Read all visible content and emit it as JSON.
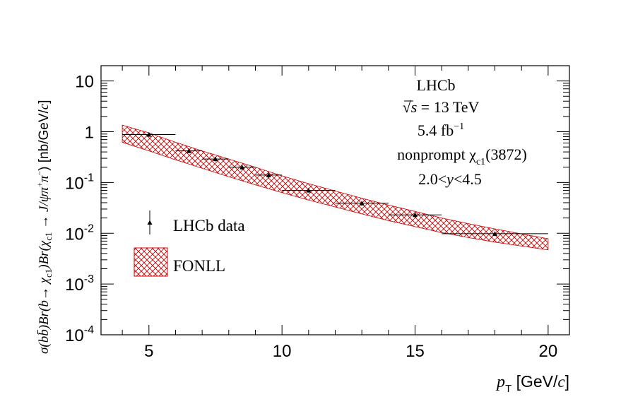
{
  "chart_data": {
    "type": "scatter",
    "title": "",
    "xlabel": "p_T [GeV/c]",
    "xlabel_parts": {
      "var": "p",
      "sub": "T",
      "unit_open": " [GeV/",
      "unit_c": "c",
      "unit_close": "]"
    },
    "ylabel": "σ(bb̄)Br(b→ χc1)Br(χc1 → J/ψπ+π−) [nb/GeV/c]",
    "ylabel_parts": {
      "sigma": "σ(",
      "bb": "bb̄",
      "br1": ")Br(b→ χ",
      "c1a": "c1",
      "br2": ")Br(χ",
      "c1b": "c1",
      "arrow": " → J/ψπ",
      "plus": "+",
      "pi": "π",
      "minus": "−",
      "close": ") [nb/GeV/",
      "c": "c",
      "end": "]"
    },
    "xlim": [
      3.2,
      20.8
    ],
    "ylim": [
      0.0001,
      20
    ],
    "yscale": "log",
    "xticks": [
      5,
      10,
      15,
      20
    ],
    "xtick_labels": [
      "5",
      "10",
      "15",
      "20"
    ],
    "yticks": [
      {
        "value": 10,
        "base": "10",
        "exp": ""
      },
      {
        "value": 1,
        "base": "1",
        "exp": ""
      },
      {
        "value": 0.1,
        "base": "10",
        "exp": "-1"
      },
      {
        "value": 0.01,
        "base": "10",
        "exp": "-2"
      },
      {
        "value": 0.001,
        "base": "10",
        "exp": "-3"
      },
      {
        "value": 0.0001,
        "base": "10",
        "exp": "-4"
      }
    ],
    "series": [
      {
        "name": "LHCb data",
        "marker": "triangle",
        "color": "#000000",
        "points": [
          {
            "x": 5.0,
            "xlo": 4.0,
            "xhi": 6.0,
            "y": 0.88,
            "ylo": 0.8,
            "yhi": 0.97
          },
          {
            "x": 6.5,
            "xlo": 6.0,
            "xhi": 7.0,
            "y": 0.42,
            "ylo": 0.38,
            "yhi": 0.47
          },
          {
            "x": 7.5,
            "xlo": 7.0,
            "xhi": 8.0,
            "y": 0.29,
            "ylo": 0.26,
            "yhi": 0.32
          },
          {
            "x": 8.5,
            "xlo": 8.0,
            "xhi": 9.0,
            "y": 0.2,
            "ylo": 0.18,
            "yhi": 0.22
          },
          {
            "x": 9.5,
            "xlo": 9.0,
            "xhi": 10.0,
            "y": 0.14,
            "ylo": 0.126,
            "yhi": 0.155
          },
          {
            "x": 11.0,
            "xlo": 10.0,
            "xhi": 12.0,
            "y": 0.07,
            "ylo": 0.063,
            "yhi": 0.078
          },
          {
            "x": 13.0,
            "xlo": 12.0,
            "xhi": 14.0,
            "y": 0.039,
            "ylo": 0.035,
            "yhi": 0.043
          },
          {
            "x": 15.0,
            "xlo": 14.0,
            "xhi": 16.0,
            "y": 0.023,
            "ylo": 0.0205,
            "yhi": 0.0255
          },
          {
            "x": 18.0,
            "xlo": 16.0,
            "xhi": 20.0,
            "y": 0.0098,
            "ylo": 0.0088,
            "yhi": 0.0108
          }
        ]
      },
      {
        "name": "FONLL",
        "style": "hatched band",
        "color": "#cc0000",
        "x": [
          4.0,
          5.0,
          6.0,
          7.0,
          8.0,
          9.0,
          10.0,
          11.0,
          12.0,
          13.0,
          14.0,
          15.0,
          16.0,
          17.0,
          18.0,
          19.0,
          20.0
        ],
        "upper": [
          1.35,
          0.95,
          0.62,
          0.42,
          0.29,
          0.2,
          0.135,
          0.095,
          0.068,
          0.049,
          0.036,
          0.027,
          0.02,
          0.0155,
          0.0122,
          0.0097,
          0.0078
        ],
        "lower": [
          0.62,
          0.42,
          0.28,
          0.19,
          0.13,
          0.09,
          0.063,
          0.045,
          0.033,
          0.024,
          0.0178,
          0.0135,
          0.0103,
          0.0082,
          0.0067,
          0.0056,
          0.0047
        ]
      }
    ],
    "legend": {
      "position": "left-middle",
      "entries": [
        "LHCb data",
        "FONLL"
      ]
    },
    "annotations": {
      "experiment": "LHCb",
      "energy_sqrt": "√",
      "energy_s": "s",
      "energy_value": " = 13 TeV",
      "lumi": "5.4 fb",
      "lumi_exp": "−1",
      "process_prefix": "nonprompt χ",
      "process_sub": "c1",
      "process_suffix": "(3872)",
      "rapidity_lo": "2.0<",
      "rapidity_var": "y",
      "rapidity_hi": "<4.5"
    }
  }
}
